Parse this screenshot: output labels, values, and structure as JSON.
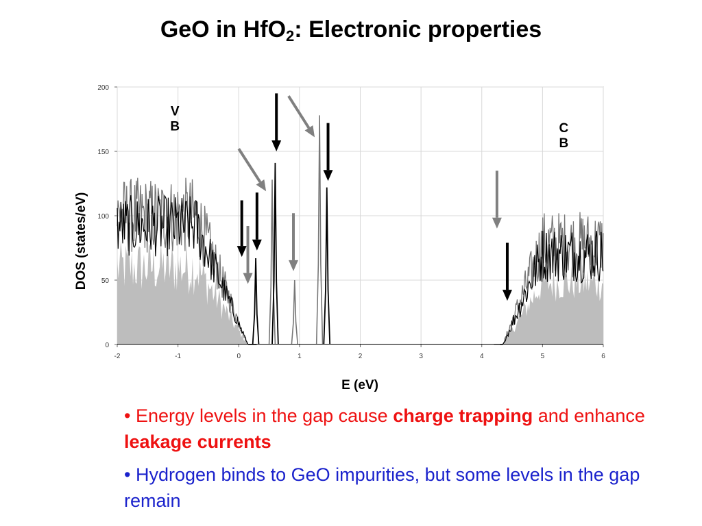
{
  "title": {
    "main": "GeO in HfO",
    "sub": "2",
    "rest": ": Electronic properties"
  },
  "chart_data": {
    "type": "area",
    "xlabel": "E (eV)",
    "ylabel": "DOS (states/eV)",
    "xlim": [
      -2,
      6
    ],
    "ylim": [
      0,
      200
    ],
    "xticks": [
      "-2",
      "-1",
      "0",
      "1",
      "2",
      "3",
      "4",
      "5",
      "6"
    ],
    "yticks": [
      "0",
      "50",
      "100",
      "150",
      "200"
    ],
    "grid": true,
    "colors": {
      "fill": "#bdbdbd",
      "series_dark": "#000000",
      "series_gray": "#777777",
      "arrow_gray": "#808080"
    },
    "annotations": [
      {
        "lines": [
          "V",
          "B"
        ],
        "x": -1.05,
        "y": 178
      },
      {
        "lines": [
          "C",
          "B"
        ],
        "x": 5.35,
        "y": 165
      }
    ],
    "gap_peaks_dark": [
      {
        "x": 0.28,
        "y": 67
      },
      {
        "x": 0.6,
        "y": 141
      },
      {
        "x": 1.45,
        "y": 122
      }
    ],
    "gap_peaks_gray": [
      {
        "x": 0.55,
        "y": 128
      },
      {
        "x": 0.92,
        "y": 50
      },
      {
        "x": 1.33,
        "y": 178
      }
    ],
    "arrows_dark": [
      {
        "x": 0.05,
        "y_start": 112,
        "y_end": 68
      },
      {
        "x": 0.3,
        "y_start": 118,
        "y_end": 73
      },
      {
        "x": 0.62,
        "y_start": 195,
        "y_end": 150
      },
      {
        "x": 1.47,
        "y_start": 172,
        "y_end": 127
      },
      {
        "x": 4.42,
        "y_start": 79,
        "y_end": 34
      }
    ],
    "arrows_gray": [
      {
        "x1": 0.0,
        "y1": 152,
        "x2": 0.45,
        "y2": 119
      },
      {
        "x1": 0.15,
        "y1": 92,
        "x2": 0.15,
        "y2": 47
      },
      {
        "x1": 0.9,
        "y1": 102,
        "x2": 0.9,
        "y2": 57
      },
      {
        "x1": 0.82,
        "y1": 193,
        "x2": 1.25,
        "y2": 161
      },
      {
        "x1": 4.25,
        "y1": 135,
        "x2": 4.25,
        "y2": 90
      }
    ]
  },
  "bullets": [
    {
      "prefix": "• Energy levels in the gap cause ",
      "bold1": "charge trapping",
      "mid": " and enhance ",
      "bold2": "leakage currents"
    },
    {
      "text": "• Hydrogen binds to GeO impurities, but some levels in the gap remain"
    }
  ]
}
